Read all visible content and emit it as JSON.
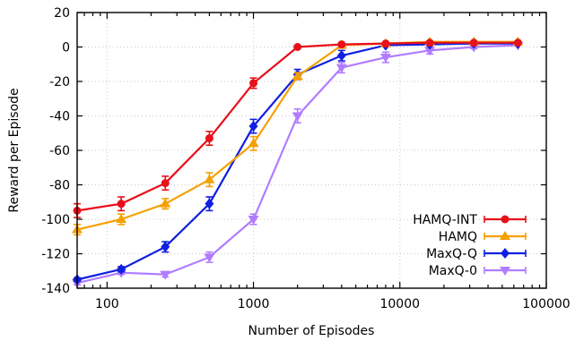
{
  "chart_data": {
    "type": "line",
    "title": "",
    "xlabel": "Number of Episodes",
    "ylabel": "Reward per Episode",
    "xscale": "log",
    "xlim": [
      62.5,
      100000
    ],
    "ylim": [
      -140,
      20
    ],
    "grid": true,
    "legend_position": "bottom-right",
    "x": [
      62.5,
      125,
      250,
      500,
      1000,
      2000,
      4000,
      8000,
      16000,
      32000,
      64000
    ],
    "x_ticks": [
      100,
      1000,
      10000,
      100000
    ],
    "x_tick_labels": [
      "100",
      "1000",
      "10000",
      "100000"
    ],
    "y_ticks": [
      20,
      0,
      -20,
      -40,
      -60,
      -80,
      -100,
      -120,
      -140
    ],
    "y_tick_labels": [
      "20",
      "0",
      "-20",
      "-40",
      "-60",
      "-80",
      "-100",
      "-120",
      "-140"
    ],
    "series": [
      {
        "name": "HAMQ-INT",
        "color": "#e8101a",
        "marker": "circle",
        "values": [
          -95,
          -91,
          -79,
          -53,
          -21,
          0,
          1.5,
          2,
          2.5,
          2.5,
          2.5
        ],
        "errors": [
          4,
          4,
          4,
          4,
          3,
          0,
          0,
          0,
          0,
          0,
          0
        ]
      },
      {
        "name": "HAMQ",
        "color": "#f5a000",
        "marker": "triangle-up",
        "values": [
          -106,
          -100,
          -91,
          -77,
          -56,
          -17,
          1,
          2,
          3,
          3,
          3
        ],
        "errors": [
          3,
          3,
          3,
          4,
          4,
          2,
          0,
          0,
          0,
          0,
          0
        ]
      },
      {
        "name": "MaxQ-Q",
        "color": "#1020e0",
        "marker": "diamond",
        "values": [
          -135,
          -129,
          -116,
          -91,
          -46,
          -16,
          -5,
          1,
          1.5,
          2,
          2
        ],
        "errors": [
          1,
          1.5,
          3,
          4,
          4,
          3,
          3,
          0,
          0,
          0,
          0
        ]
      },
      {
        "name": "MaxQ-0",
        "color": "#b07cff",
        "marker": "triangle-down",
        "values": [
          -137,
          -131,
          -132,
          -122,
          -100,
          -40,
          -12,
          -6,
          -2,
          0,
          1
        ],
        "errors": [
          1,
          1,
          1.5,
          3,
          3,
          4,
          3,
          3,
          2,
          1,
          0
        ]
      }
    ]
  }
}
